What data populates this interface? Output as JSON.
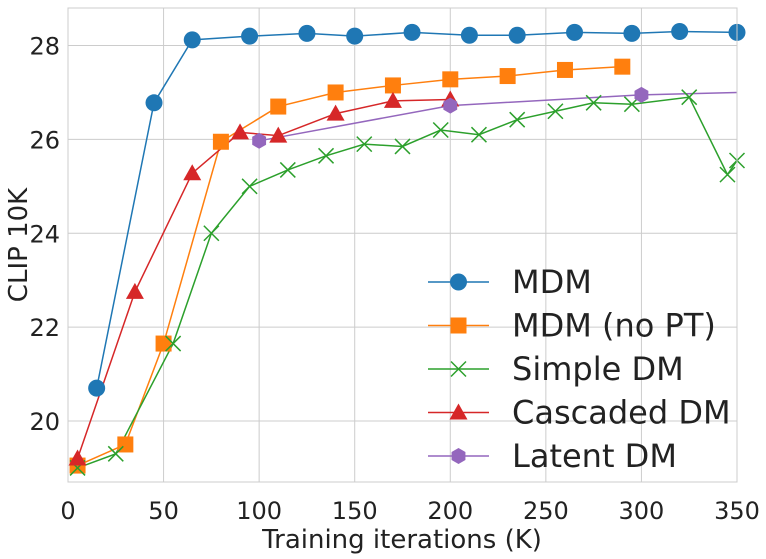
{
  "chart_data": {
    "type": "line",
    "title": "",
    "xlabel": "Training iterations (K)",
    "ylabel": "CLIP 10K",
    "xlim": [
      0,
      350
    ],
    "ylim": [
      18.7,
      28.8
    ],
    "grid": true,
    "legend_position": "lower-right",
    "x_ticks": [
      0,
      50,
      100,
      150,
      200,
      250,
      300,
      350
    ],
    "y_ticks": [
      20,
      22,
      24,
      26,
      28
    ],
    "series": [
      {
        "name": "MDM",
        "color": "#1f77b4",
        "marker": "circle",
        "x": [
          15,
          45,
          65,
          95,
          125,
          150,
          180,
          210,
          235,
          265,
          295,
          320,
          350
        ],
        "y": [
          20.7,
          26.78,
          28.12,
          28.2,
          28.26,
          28.2,
          28.28,
          28.22,
          28.22,
          28.28,
          28.26,
          28.3,
          28.28
        ]
      },
      {
        "name": "MDM (no PT)",
        "color": "#ff7f0e",
        "marker": "square",
        "x": [
          5,
          30,
          50,
          80,
          110,
          140,
          170,
          200,
          230,
          260,
          290
        ],
        "y": [
          19.05,
          19.5,
          21.65,
          25.95,
          26.7,
          27.0,
          27.15,
          27.28,
          27.35,
          27.48,
          27.55
        ]
      },
      {
        "name": "Simple DM",
        "color": "#2ca02c",
        "marker": "x",
        "x": [
          5,
          25,
          55,
          75,
          95,
          115,
          135,
          155,
          175,
          195,
          215,
          235,
          255,
          275,
          295,
          325,
          345,
          350
        ],
        "y": [
          19.0,
          19.3,
          21.65,
          24.0,
          25.0,
          25.35,
          25.65,
          25.9,
          25.85,
          26.2,
          26.1,
          26.42,
          26.6,
          26.78,
          26.75,
          26.9,
          25.25,
          25.55
        ]
      },
      {
        "name": "Cascaded DM",
        "color": "#d62728",
        "marker": "triangle",
        "x": [
          5,
          35,
          65,
          90,
          110,
          140,
          170,
          200
        ],
        "y": [
          19.2,
          22.75,
          25.28,
          26.15,
          26.08,
          26.55,
          26.82,
          26.85
        ]
      },
      {
        "name": "Latent DM",
        "color": "#9467bd",
        "marker": "hexagon",
        "x": [
          100,
          200,
          300,
          350
        ],
        "y": [
          25.97,
          26.72,
          26.95,
          27.0
        ],
        "marker_shown": [
          true,
          true,
          true,
          false
        ]
      }
    ]
  }
}
